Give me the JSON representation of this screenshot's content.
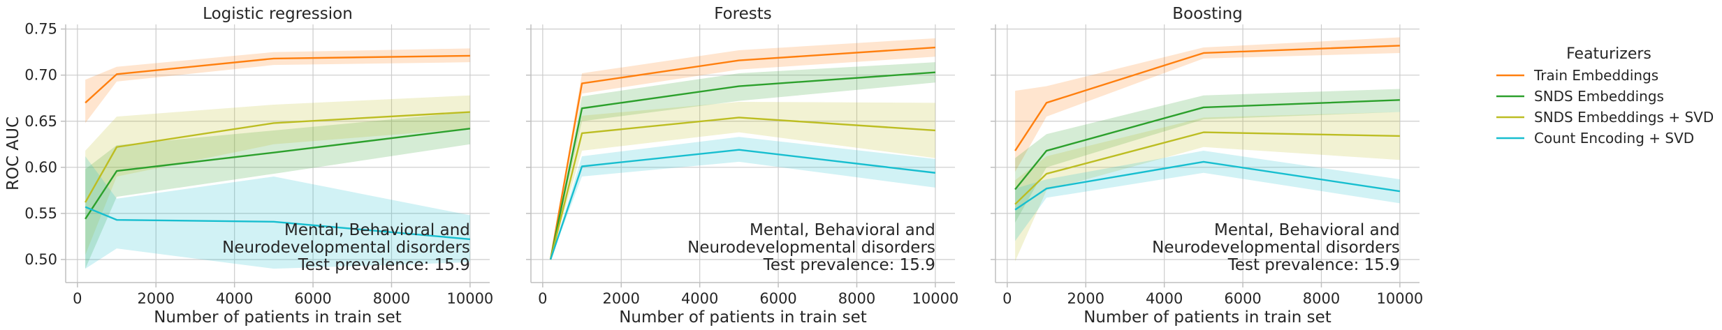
{
  "chart_data": {
    "type": "line",
    "ylabel": "ROC AUC",
    "xlabel": "Number of patients in train set",
    "ylim": [
      0.475,
      0.755
    ],
    "xlim": [
      -300,
      10500
    ],
    "x_ticks": [
      0,
      2000,
      4000,
      6000,
      8000,
      10000
    ],
    "x_tick_labels": [
      "0",
      "2000",
      "4000",
      "6000",
      "8000",
      "10000"
    ],
    "y_ticks": [
      0.5,
      0.55,
      0.6,
      0.65,
      0.7,
      0.75
    ],
    "y_tick_labels": [
      "0.50",
      "0.55",
      "0.60",
      "0.65",
      "0.70",
      "0.75"
    ],
    "grid": true,
    "legend": {
      "title": "Featurizers",
      "placement": "right, outside",
      "entries": [
        "Train Embeddings",
        "SNDS Embeddings",
        "SNDS Embeddings + SVD",
        "Count Encoding + SVD"
      ]
    },
    "colors": {
      "Train Embeddings": "#ff7f0e",
      "SNDS Embeddings": "#2ca02c",
      "SNDS Embeddings + SVD": "#bcbd22",
      "Count Encoding + SVD": "#17becf"
    },
    "annotation_lines": [
      "Mental, Behavioral and",
      "Neurodevelopmental disorders",
      "Test prevalence: 15.9"
    ],
    "panels": [
      {
        "title": "Logistic regression",
        "x": [
          200,
          1000,
          5000,
          10000
        ],
        "series": [
          {
            "name": "Train Embeddings",
            "values": [
              0.67,
              0.701,
              0.718,
              0.721
            ],
            "lower": [
              0.648,
              0.693,
              0.711,
              0.714
            ],
            "upper": [
              0.695,
              0.709,
              0.725,
              0.729
            ]
          },
          {
            "name": "SNDS Embeddings",
            "values": [
              0.544,
              0.596,
              0.616,
              0.642
            ],
            "lower": [
              0.49,
              0.568,
              0.593,
              0.625
            ],
            "upper": [
              0.598,
              0.624,
              0.64,
              0.66
            ]
          },
          {
            "name": "SNDS Embeddings + SVD",
            "values": [
              0.562,
              0.622,
              0.648,
              0.66
            ],
            "lower": [
              0.505,
              0.59,
              0.625,
              0.642
            ],
            "upper": [
              0.618,
              0.655,
              0.668,
              0.678
            ]
          },
          {
            "name": "Count Encoding + SVD",
            "values": [
              0.557,
              0.543,
              0.541,
              0.522
            ],
            "lower": [
              0.49,
              0.512,
              0.49,
              0.497
            ],
            "upper": [
              0.612,
              0.566,
              0.59,
              0.548
            ]
          }
        ]
      },
      {
        "title": "Forests",
        "x": [
          200,
          1000,
          5000,
          10000
        ],
        "series": [
          {
            "name": "Train Embeddings",
            "values": [
              0.5,
              0.691,
              0.716,
              0.73
            ],
            "lower": [
              0.5,
              0.68,
              0.706,
              0.72
            ],
            "upper": [
              0.5,
              0.702,
              0.727,
              0.74
            ]
          },
          {
            "name": "SNDS Embeddings",
            "values": [
              0.5,
              0.664,
              0.688,
              0.703
            ],
            "lower": [
              0.5,
              0.65,
              0.672,
              0.692
            ],
            "upper": [
              0.5,
              0.677,
              0.702,
              0.714
            ]
          },
          {
            "name": "SNDS Embeddings + SVD",
            "values": [
              0.5,
              0.637,
              0.654,
              0.64
            ],
            "lower": [
              0.5,
              0.618,
              0.638,
              0.61
            ],
            "upper": [
              0.5,
              0.656,
              0.671,
              0.67
            ]
          },
          {
            "name": "Count Encoding + SVD",
            "values": [
              0.5,
              0.601,
              0.619,
              0.594
            ],
            "lower": [
              0.5,
              0.59,
              0.606,
              0.578
            ],
            "upper": [
              0.5,
              0.612,
              0.633,
              0.609
            ]
          }
        ]
      },
      {
        "title": "Boosting",
        "x": [
          200,
          1000,
          5000,
          10000
        ],
        "series": [
          {
            "name": "Train Embeddings",
            "values": [
              0.618,
              0.67,
              0.724,
              0.732
            ],
            "lower": [
              0.595,
              0.655,
              0.718,
              0.724
            ],
            "upper": [
              0.683,
              0.688,
              0.73,
              0.741
            ]
          },
          {
            "name": "SNDS Embeddings",
            "values": [
              0.576,
              0.618,
              0.665,
              0.673
            ],
            "lower": [
              0.54,
              0.6,
              0.652,
              0.66
            ],
            "upper": [
              0.61,
              0.636,
              0.678,
              0.685
            ]
          },
          {
            "name": "SNDS Embeddings + SVD",
            "values": [
              0.56,
              0.593,
              0.638,
              0.634
            ],
            "lower": [
              0.498,
              0.575,
              0.622,
              0.608
            ],
            "upper": [
              0.586,
              0.612,
              0.654,
              0.66
            ]
          },
          {
            "name": "Count Encoding + SVD",
            "values": [
              0.554,
              0.577,
              0.606,
              0.574
            ],
            "lower": [
              0.52,
              0.567,
              0.594,
              0.561
            ],
            "upper": [
              0.577,
              0.587,
              0.618,
              0.587
            ]
          }
        ]
      }
    ]
  }
}
